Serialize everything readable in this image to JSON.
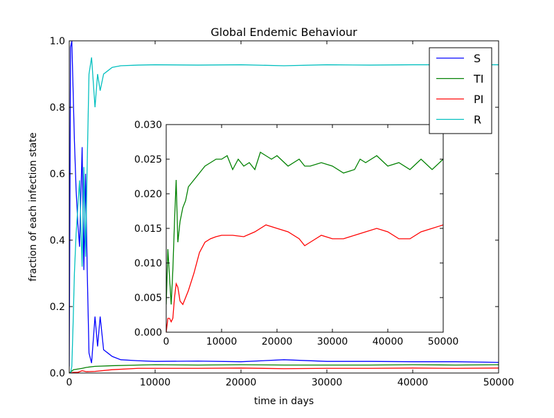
{
  "chart_data": [
    {
      "id": "main",
      "type": "line",
      "title": "Global Endemic Behaviour",
      "xlabel": "time in days",
      "ylabel": "fraction of each infection state",
      "xlim": [
        0,
        50000
      ],
      "ylim": [
        0,
        1.0
      ],
      "xticks": [
        0,
        10000,
        20000,
        30000,
        40000,
        50000
      ],
      "xtick_labels": [
        "0",
        "10000",
        "20000",
        "30000",
        "40000",
        "50000"
      ],
      "yticks": [
        0.0,
        0.2,
        0.4,
        0.6,
        0.8,
        1.0
      ],
      "ytick_labels": [
        "0.0",
        "0.2",
        "0.4",
        "0.6",
        "0.8",
        "1.0"
      ],
      "legend": {
        "position": "top-right",
        "entries": [
          {
            "label": "S",
            "color": "#0000ff"
          },
          {
            "label": "TI",
            "color": "#008000"
          },
          {
            "label": "PI",
            "color": "#ff0000"
          },
          {
            "label": "R",
            "color": "#00bfbf"
          }
        ]
      },
      "series": [
        {
          "name": "S",
          "color": "#0000ff",
          "x": [
            0,
            150,
            300,
            450,
            600,
            800,
            1000,
            1200,
            1500,
            1700,
            1900,
            2100,
            2300,
            2600,
            3000,
            3300,
            3600,
            4000,
            4500,
            5000,
            6000,
            8000,
            10000,
            15000,
            20000,
            25000,
            30000,
            35000,
            40000,
            45000,
            50000
          ],
          "y": [
            0.02,
            0.98,
            1.0,
            0.85,
            0.7,
            0.55,
            0.45,
            0.38,
            0.68,
            0.31,
            0.6,
            0.3,
            0.06,
            0.03,
            0.17,
            0.08,
            0.17,
            0.07,
            0.06,
            0.05,
            0.04,
            0.037,
            0.035,
            0.036,
            0.034,
            0.04,
            0.035,
            0.035,
            0.034,
            0.034,
            0.032
          ]
        },
        {
          "name": "TI",
          "color": "#008000",
          "x": [
            0,
            500,
            1000,
            1500,
            2000,
            3000,
            5000,
            8000,
            10000,
            15000,
            20000,
            25000,
            30000,
            35000,
            40000,
            45000,
            50000
          ],
          "y": [
            0.0,
            0.01,
            0.012,
            0.014,
            0.017,
            0.02,
            0.022,
            0.024,
            0.025,
            0.024,
            0.025,
            0.024,
            0.024,
            0.024,
            0.025,
            0.024,
            0.025
          ]
        },
        {
          "name": "PI",
          "color": "#ff0000",
          "x": [
            0,
            500,
            1000,
            1500,
            2000,
            3000,
            5000,
            8000,
            10000,
            15000,
            20000,
            25000,
            30000,
            35000,
            40000,
            45000,
            50000
          ],
          "y": [
            0.0,
            0.002,
            0.002,
            0.007,
            0.004,
            0.005,
            0.01,
            0.014,
            0.014,
            0.014,
            0.015,
            0.013,
            0.014,
            0.014,
            0.015,
            0.014,
            0.015
          ]
        },
        {
          "name": "R",
          "color": "#00bfbf",
          "x": [
            0,
            150,
            300,
            450,
            600,
            800,
            1000,
            1200,
            1500,
            1700,
            1900,
            2100,
            2300,
            2600,
            3000,
            3300,
            3600,
            4000,
            4500,
            5000,
            6000,
            8000,
            10000,
            15000,
            20000,
            25000,
            30000,
            35000,
            40000,
            45000,
            50000
          ],
          "y": [
            0.0,
            0.0,
            0.02,
            0.15,
            0.3,
            0.42,
            0.5,
            0.58,
            0.32,
            0.62,
            0.35,
            0.64,
            0.9,
            0.95,
            0.8,
            0.9,
            0.85,
            0.9,
            0.91,
            0.92,
            0.925,
            0.927,
            0.928,
            0.927,
            0.928,
            0.925,
            0.928,
            0.927,
            0.928,
            0.928,
            0.928
          ]
        }
      ]
    },
    {
      "id": "inset",
      "type": "line",
      "xlim": [
        0,
        50000
      ],
      "ylim": [
        0,
        0.03
      ],
      "xticks": [
        0,
        10000,
        20000,
        30000,
        40000,
        50000
      ],
      "xtick_labels": [
        "0",
        "10000",
        "20000",
        "30000",
        "40000",
        "50000"
      ],
      "yticks": [
        0.0,
        0.005,
        0.01,
        0.015,
        0.02,
        0.025,
        0.03
      ],
      "ytick_labels": [
        "0.000",
        "0.005",
        "0.010",
        "0.015",
        "0.020",
        "0.025",
        "0.030"
      ],
      "series": [
        {
          "name": "TI",
          "color": "#008000",
          "x": [
            0,
            300,
            600,
            900,
            1200,
            1500,
            1800,
            2100,
            2500,
            3000,
            3500,
            4000,
            5000,
            6000,
            7000,
            8000,
            9000,
            10000,
            11000,
            12000,
            13000,
            14000,
            15000,
            16000,
            17000,
            18000,
            19000,
            20000,
            22000,
            24000,
            25000,
            26000,
            28000,
            30000,
            32000,
            34000,
            35000,
            36000,
            38000,
            40000,
            42000,
            44000,
            46000,
            48000,
            50000
          ],
          "y": [
            0.004,
            0.012,
            0.008,
            0.004,
            0.009,
            0.016,
            0.022,
            0.013,
            0.016,
            0.018,
            0.019,
            0.021,
            0.022,
            0.023,
            0.024,
            0.0245,
            0.025,
            0.025,
            0.0255,
            0.0235,
            0.025,
            0.024,
            0.0245,
            0.0235,
            0.026,
            0.0255,
            0.025,
            0.0255,
            0.024,
            0.025,
            0.024,
            0.024,
            0.0245,
            0.024,
            0.023,
            0.0235,
            0.025,
            0.0245,
            0.0255,
            0.024,
            0.0245,
            0.0235,
            0.025,
            0.0235,
            0.025
          ]
        },
        {
          "name": "PI",
          "color": "#ff0000",
          "x": [
            0,
            300,
            600,
            900,
            1200,
            1500,
            1800,
            2100,
            2500,
            3000,
            3500,
            4000,
            5000,
            6000,
            7000,
            8000,
            9000,
            10000,
            12000,
            14000,
            16000,
            18000,
            20000,
            22000,
            24000,
            25000,
            26000,
            28000,
            30000,
            32000,
            34000,
            36000,
            38000,
            40000,
            42000,
            44000,
            46000,
            48000,
            50000
          ],
          "y": [
            0.0,
            0.002,
            0.002,
            0.0015,
            0.002,
            0.005,
            0.007,
            0.0065,
            0.0045,
            0.004,
            0.005,
            0.006,
            0.0085,
            0.0115,
            0.013,
            0.0135,
            0.0138,
            0.014,
            0.014,
            0.0138,
            0.0145,
            0.0155,
            0.015,
            0.0145,
            0.0135,
            0.0125,
            0.013,
            0.014,
            0.0135,
            0.0135,
            0.014,
            0.0145,
            0.015,
            0.0145,
            0.0135,
            0.0135,
            0.0145,
            0.015,
            0.0155
          ]
        }
      ]
    }
  ]
}
